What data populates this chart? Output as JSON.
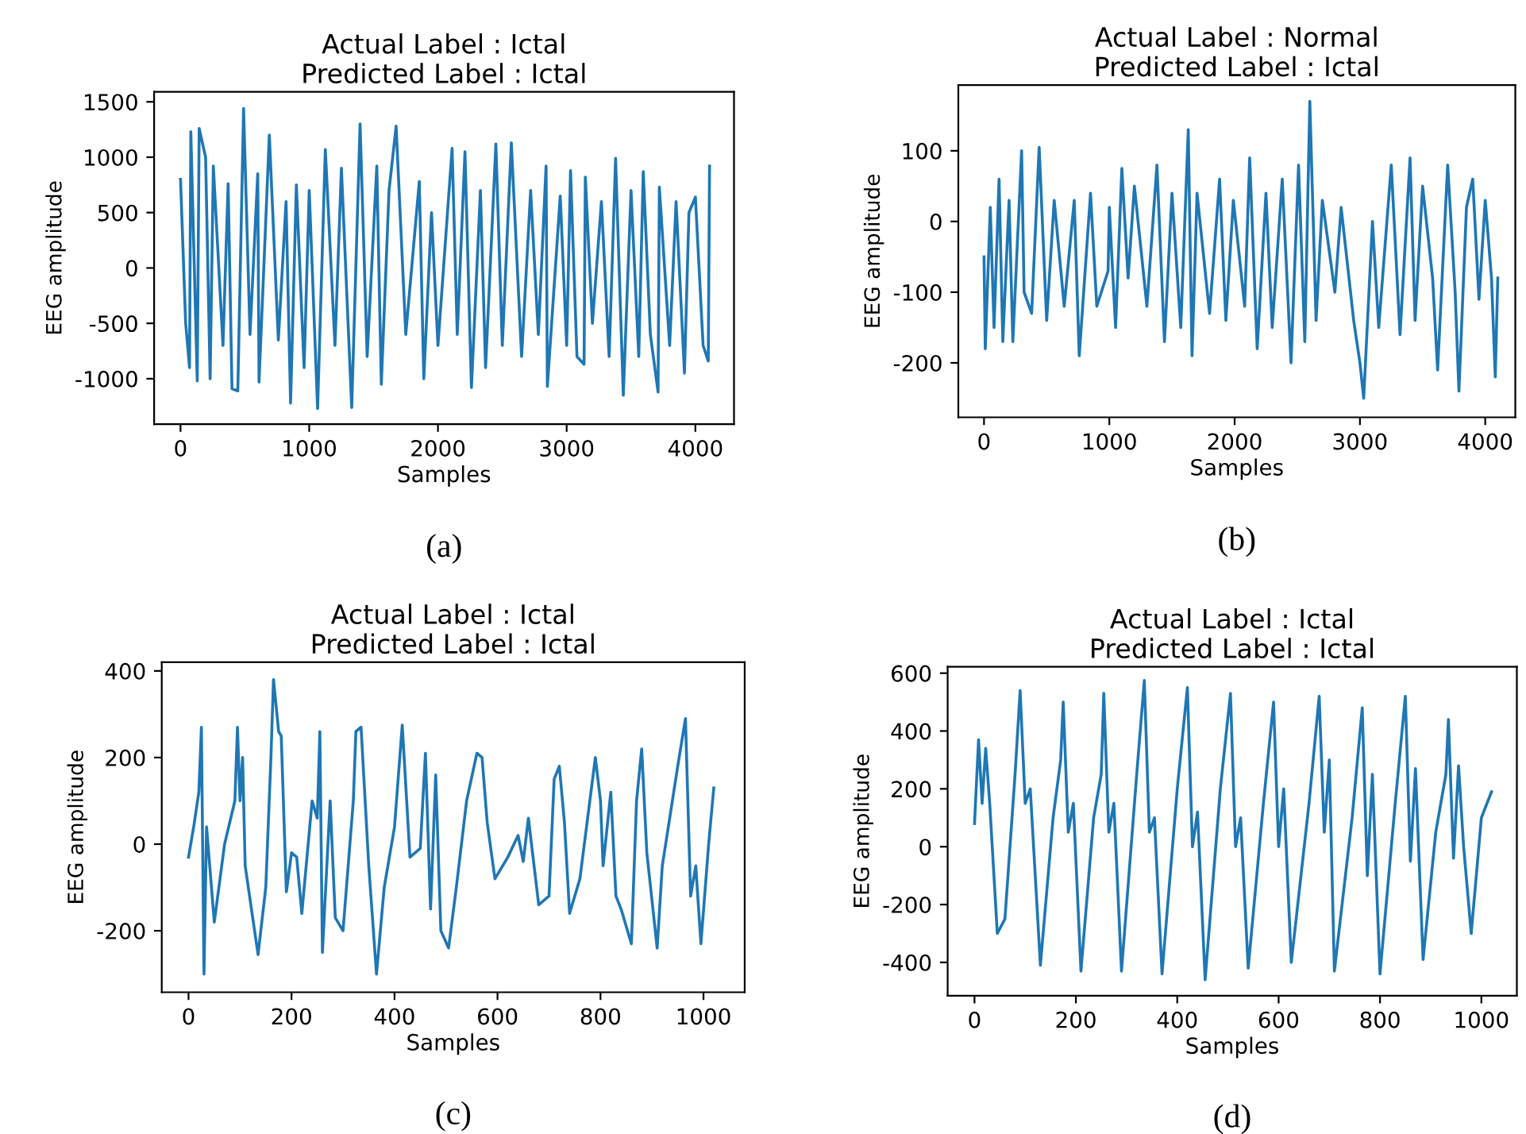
{
  "chart_data": [
    {
      "type": "line",
      "title": "Actual Label : Ictal\nPredicted Label : Ictal",
      "xlabel": "Samples",
      "ylabel": "EEG amplitude",
      "annotations": [
        "(a)"
      ],
      "xlim": [
        -205,
        4300
      ],
      "ylim": [
        -1410,
        1590
      ],
      "xticks": [
        0,
        1000,
        2000,
        3000,
        4000
      ],
      "yticks": [
        -1000,
        -500,
        0,
        500,
        1000,
        1500
      ],
      "grid": false,
      "x": [
        0,
        40,
        70,
        80,
        130,
        145,
        195,
        230,
        255,
        330,
        370,
        400,
        445,
        490,
        540,
        600,
        610,
        690,
        760,
        820,
        855,
        900,
        960,
        1000,
        1065,
        1125,
        1200,
        1250,
        1330,
        1395,
        1450,
        1525,
        1560,
        1620,
        1675,
        1750,
        1855,
        1890,
        1950,
        2000,
        2110,
        2150,
        2210,
        2260,
        2330,
        2370,
        2450,
        2500,
        2570,
        2650,
        2720,
        2780,
        2840,
        2850,
        2950,
        3000,
        3030,
        3080,
        3135,
        3145,
        3200,
        3270,
        3330,
        3380,
        3440,
        3500,
        3560,
        3595,
        3650,
        3710,
        3720,
        3800,
        3850,
        3915,
        3950,
        4000,
        4060,
        4100,
        4110
      ],
      "series": [
        {
          "color": "#1f77b4",
          "values": [
            800,
            -500,
            -900,
            1230,
            -1020,
            1260,
            1000,
            -1000,
            920,
            -700,
            760,
            -1090,
            -1110,
            1440,
            -600,
            850,
            -1030,
            1200,
            -650,
            600,
            -1220,
            750,
            -900,
            700,
            -1270,
            1070,
            -700,
            900,
            -1260,
            1300,
            -800,
            920,
            -1050,
            700,
            1280,
            -600,
            780,
            -1000,
            500,
            -700,
            1080,
            -600,
            1050,
            -1080,
            700,
            -900,
            1120,
            -700,
            1130,
            -800,
            700,
            -600,
            920,
            -1070,
            650,
            -700,
            880,
            -800,
            -870,
            820,
            -500,
            600,
            -800,
            990,
            -1150,
            700,
            -800,
            870,
            -600,
            -1120,
            730,
            -700,
            600,
            -950,
            500,
            640,
            -700,
            -840,
            920
          ]
        }
      ]
    },
    {
      "type": "line",
      "title": "Actual Label : Normal\nPredicted Label : Ictal",
      "xlabel": "Samples",
      "ylabel": "EEG amplitude",
      "annotations": [
        "(b)"
      ],
      "xlim": [
        -205,
        4240
      ],
      "ylim": [
        -277,
        193
      ],
      "xticks": [
        0,
        1000,
        2000,
        3000,
        4000
      ],
      "yticks": [
        -200,
        -100,
        0,
        100
      ],
      "grid": false,
      "x": [
        0,
        10,
        50,
        80,
        120,
        150,
        200,
        230,
        300,
        320,
        380,
        440,
        500,
        560,
        640,
        720,
        760,
        850,
        900,
        990,
        1000,
        1050,
        1100,
        1150,
        1200,
        1300,
        1380,
        1440,
        1500,
        1570,
        1630,
        1660,
        1700,
        1800,
        1880,
        1930,
        1990,
        2080,
        2120,
        2180,
        2250,
        2300,
        2380,
        2450,
        2510,
        2560,
        2600,
        2650,
        2700,
        2800,
        2850,
        2950,
        3000,
        3030,
        3100,
        3150,
        3250,
        3320,
        3400,
        3440,
        3500,
        3580,
        3620,
        3700,
        3760,
        3790,
        3850,
        3900,
        3950,
        4000,
        4050,
        4080,
        4100
      ],
      "series": [
        {
          "color": "#1f77b4",
          "values": [
            -50,
            -180,
            20,
            -150,
            60,
            -170,
            30,
            -170,
            100,
            -100,
            -130,
            105,
            -140,
            30,
            -120,
            30,
            -190,
            40,
            -120,
            -70,
            20,
            -150,
            75,
            -80,
            50,
            -120,
            80,
            -170,
            40,
            -150,
            130,
            -190,
            40,
            -130,
            60,
            -140,
            30,
            -120,
            90,
            -180,
            40,
            -150,
            60,
            -200,
            80,
            -170,
            170,
            -140,
            30,
            -100,
            20,
            -140,
            -200,
            -250,
            0,
            -150,
            80,
            -160,
            90,
            -140,
            50,
            -80,
            -210,
            80,
            -100,
            -240,
            20,
            60,
            -110,
            30,
            -80,
            -220,
            -80
          ]
        }
      ]
    },
    {
      "type": "line",
      "title": "Actual Label : Ictal\nPredicted Label : Ictal",
      "xlabel": "Samples",
      "ylabel": "EEG amplitude",
      "annotations": [
        "(c)"
      ],
      "xlim": [
        -52,
        1080
      ],
      "ylim": [
        -342,
        420
      ],
      "xticks": [
        0,
        200,
        400,
        600,
        800,
        1000
      ],
      "yticks": [
        -200,
        0,
        200,
        400
      ],
      "grid": false,
      "x": [
        0,
        10,
        20,
        25,
        30,
        35,
        50,
        70,
        90,
        95,
        100,
        105,
        110,
        135,
        150,
        160,
        165,
        175,
        180,
        190,
        200,
        210,
        220,
        240,
        250,
        255,
        260,
        275,
        285,
        300,
        320,
        325,
        335,
        350,
        365,
        380,
        400,
        415,
        430,
        450,
        460,
        470,
        480,
        490,
        505,
        520,
        540,
        560,
        570,
        580,
        595,
        620,
        640,
        650,
        660,
        680,
        700,
        710,
        720,
        730,
        740,
        760,
        790,
        800,
        805,
        820,
        830,
        840,
        860,
        870,
        880,
        890,
        910,
        920,
        950,
        965,
        975,
        985,
        995,
        1010,
        1020
      ],
      "series": [
        {
          "color": "#1f77b4",
          "values": [
            -30,
            40,
            120,
            270,
            -300,
            40,
            -180,
            0,
            100,
            270,
            100,
            200,
            -50,
            -255,
            -100,
            200,
            380,
            260,
            250,
            -110,
            -20,
            -30,
            -160,
            100,
            60,
            260,
            -250,
            100,
            -170,
            -200,
            100,
            260,
            270,
            -50,
            -300,
            -100,
            40,
            275,
            -30,
            -10,
            210,
            -150,
            160,
            -200,
            -240,
            -100,
            100,
            210,
            200,
            50,
            -80,
            -30,
            20,
            -40,
            60,
            -140,
            -120,
            150,
            180,
            50,
            -160,
            -80,
            200,
            100,
            -50,
            120,
            -120,
            -150,
            -230,
            100,
            220,
            -20,
            -240,
            -50,
            180,
            290,
            -120,
            -50,
            -230,
            0,
            130
          ]
        }
      ]
    },
    {
      "type": "line",
      "title": "Actual Label : Ictal\nPredicted Label : Ictal",
      "xlabel": "Samples",
      "ylabel": "EEG amplitude",
      "annotations": [
        "(d)"
      ],
      "xlim": [
        -53,
        1070
      ],
      "ylim": [
        -515,
        622
      ],
      "xticks": [
        0,
        200,
        400,
        600,
        800,
        1000
      ],
      "yticks": [
        -400,
        -200,
        0,
        200,
        400,
        600
      ],
      "grid": false,
      "x": [
        0,
        8,
        15,
        22,
        30,
        45,
        60,
        80,
        90,
        100,
        110,
        130,
        155,
        170,
        175,
        185,
        195,
        210,
        235,
        250,
        255,
        265,
        275,
        290,
        320,
        335,
        345,
        355,
        370,
        400,
        420,
        430,
        440,
        455,
        485,
        505,
        515,
        525,
        540,
        570,
        590,
        600,
        610,
        625,
        660,
        680,
        690,
        700,
        710,
        745,
        765,
        775,
        785,
        800,
        830,
        850,
        860,
        870,
        885,
        910,
        930,
        935,
        945,
        955,
        965,
        980,
        1000,
        1020
      ],
      "series": [
        {
          "color": "#1f77b4",
          "values": [
            80,
            370,
            150,
            340,
            150,
            -300,
            -250,
            250,
            540,
            150,
            200,
            -410,
            100,
            300,
            500,
            50,
            150,
            -430,
            100,
            250,
            530,
            50,
            150,
            -430,
            250,
            575,
            50,
            100,
            -440,
            200,
            550,
            0,
            120,
            -460,
            200,
            530,
            0,
            100,
            -420,
            150,
            500,
            0,
            200,
            -400,
            150,
            520,
            50,
            300,
            -430,
            100,
            480,
            -100,
            250,
            -440,
            150,
            520,
            -50,
            270,
            -390,
            50,
            250,
            440,
            -40,
            280,
            0,
            -300,
            100,
            190
          ]
        }
      ]
    }
  ]
}
